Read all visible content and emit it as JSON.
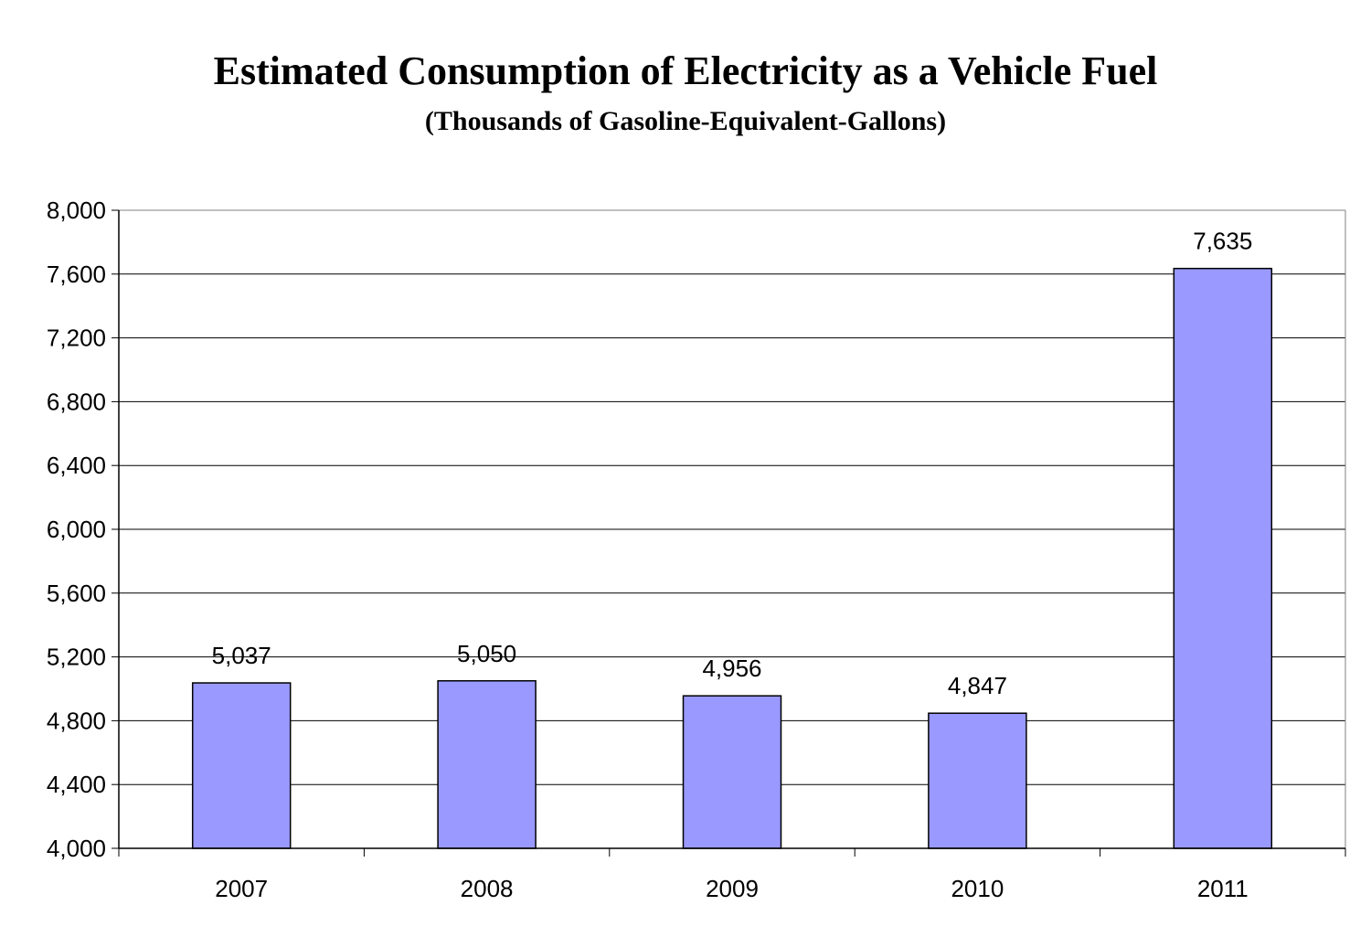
{
  "chart_data": {
    "type": "bar",
    "title": "Estimated Consumption of Electricity as a Vehicle Fuel",
    "subtitle": "(Thousands of Gasoline-Equivalent-Gallons)",
    "categories": [
      "2007",
      "2008",
      "2009",
      "2010",
      "2011"
    ],
    "values": [
      5037,
      5050,
      4956,
      4847,
      7635
    ],
    "data_labels": [
      "5,037",
      "5,050",
      "4,956",
      "4,847",
      "7,635"
    ],
    "ylim": [
      4000,
      8000
    ],
    "yticks": [
      4000,
      4400,
      4800,
      5200,
      5600,
      6000,
      6400,
      6800,
      7200,
      7600,
      8000
    ],
    "ytick_labels": [
      "4,000",
      "4,400",
      "4,800",
      "5,200",
      "5,600",
      "6,000",
      "6,400",
      "6,800",
      "7,200",
      "7,600",
      "8,000"
    ],
    "xlabel": "",
    "ylabel": "",
    "grid": true,
    "legend": "none",
    "bar_color": "#9999FF",
    "bar_edge_color": "#000000"
  }
}
